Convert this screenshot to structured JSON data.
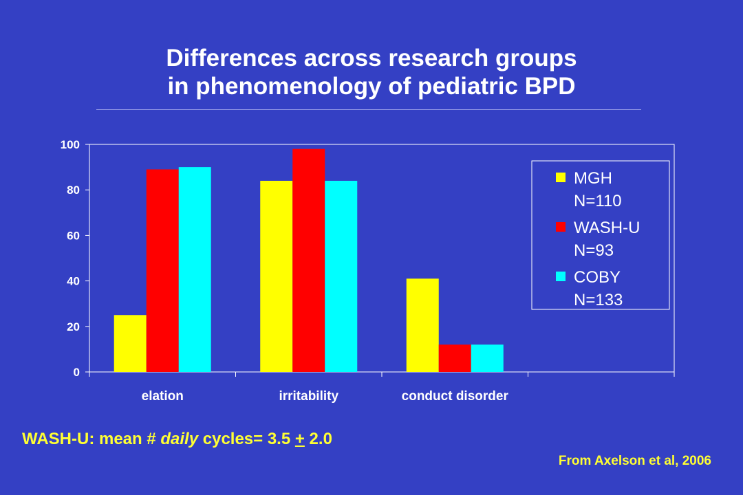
{
  "slide": {
    "title_line1": "Differences across research groups",
    "title_line2": "in phenomenology of pediatric BPD",
    "footnote": {
      "prefix": "WASH-U: mean # ",
      "italic": "daily",
      "middle": " cycles= 3.5 ",
      "plusminus": "+",
      "suffix": " 2.0"
    },
    "source": "From Axelson et al, 2006"
  },
  "chart_data": {
    "type": "bar",
    "categories": [
      "elation",
      "irritability",
      "conduct disorder",
      ""
    ],
    "series": [
      {
        "name": "MGH",
        "name2": "N=110",
        "values": [
          25,
          84,
          41,
          null
        ],
        "color": "#ffff00"
      },
      {
        "name": "WASH-U",
        "name2": "N=93",
        "values": [
          89,
          98,
          12,
          null
        ],
        "color": "#ff0000"
      },
      {
        "name": "COBY",
        "name2": "N=133",
        "values": [
          90,
          84,
          12,
          null
        ],
        "color": "#00ffff"
      }
    ],
    "ylim": [
      0,
      100
    ],
    "yticks": [
      "0",
      "20",
      "40",
      "60",
      "80",
      "100"
    ],
    "xlabel": "",
    "ylabel": "",
    "grid": false,
    "legend_position": "right"
  }
}
